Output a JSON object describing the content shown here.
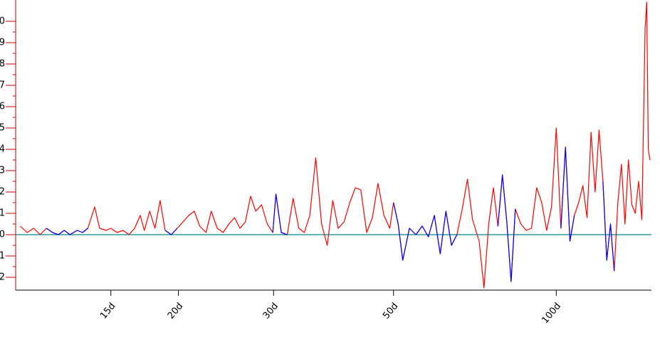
{
  "chart_data": {
    "type": "line",
    "x": [
      10.2,
      10.5,
      10.8,
      11.1,
      11.4,
      11.7,
      12.0,
      12.3,
      12.6,
      13.0,
      13.3,
      13.6,
      14.0,
      14.3,
      14.7,
      15.0,
      15.4,
      15.8,
      16.2,
      16.6,
      17.0,
      17.3,
      17.7,
      18.1,
      18.5,
      18.9,
      19.4,
      19.9,
      20.4,
      20.9,
      21.4,
      21.9,
      22.5,
      23.0,
      23.6,
      24.2,
      24.8,
      25.4,
      26.0,
      26.6,
      27.2,
      27.8,
      28.5,
      29.2,
      29.9,
      30.3,
      31.0,
      31.8,
      32.6,
      33.4,
      34.2,
      35.0,
      35.9,
      36.8,
      37.7,
      38.6,
      39.5,
      40.5,
      41.5,
      42.5,
      43.5,
      44.6,
      45.7,
      46.8,
      48.0,
      49.2,
      50.0,
      51.0,
      52.0,
      53.5,
      55.0,
      56.5,
      58.0,
      59.5,
      61.0,
      62.5,
      64.0,
      65.5,
      67.0,
      68.5,
      70.0,
      72.0,
      73.5,
      75.0,
      76.5,
      78.0,
      79.5,
      81.0,
      82.5,
      84.0,
      86.0,
      88.0,
      90.0,
      92.0,
      94.0,
      96.0,
      98.0,
      100.0,
      102.0,
      104.0,
      106.0,
      108.0,
      110.0,
      112.0,
      114.0,
      116.0,
      118.0,
      120.0,
      122.0,
      124.0,
      126.0,
      128.0,
      130.0,
      132.0,
      134.0,
      136.0,
      138.0,
      140.0,
      142.0,
      144.0,
      146.0,
      147.0,
      148.0,
      149.0
    ],
    "series": [
      {
        "color": "#ff0000",
        "values": [
          0.4,
          0.1,
          0.3,
          0.0,
          0.3,
          0.1,
          0.0,
          0.2,
          0.0,
          0.2,
          0.1,
          0.3,
          1.3,
          0.3,
          0.2,
          0.3,
          0.1,
          0.2,
          0.0,
          0.3,
          0.9,
          0.2,
          1.1,
          0.3,
          1.6,
          0.2,
          0.0,
          0.3,
          0.6,
          0.9,
          1.1,
          0.4,
          0.1,
          1.1,
          0.3,
          0.1,
          0.5,
          0.8,
          0.3,
          0.6,
          1.8,
          1.1,
          1.4,
          0.5,
          0.1,
          1.9,
          0.1,
          0.0,
          1.7,
          0.3,
          0.1,
          0.9,
          3.6,
          0.5,
          -0.5,
          1.6,
          0.3,
          0.6,
          1.5,
          2.2,
          2.1,
          0.1,
          0.8,
          2.4,
          0.9,
          0.3,
          1.5,
          0.5,
          -1.2,
          0.3,
          0.0,
          0.4,
          -0.1,
          0.9,
          -0.9,
          1.1,
          -0.5,
          0.0,
          1.2,
          2.6,
          0.7,
          -0.3,
          -2.5,
          0.5,
          2.2,
          0.4,
          2.8,
          0.6,
          -2.2,
          1.2,
          0.5,
          0.2,
          0.3,
          2.2,
          1.5,
          0.2,
          1.3,
          5.0,
          0.3,
          4.1,
          -0.3,
          0.9,
          1.5,
          2.3,
          0.8,
          4.8,
          2.0,
          4.9,
          2.5,
          -1.2,
          0.5,
          -1.7,
          1.5,
          3.3,
          0.5,
          3.5,
          1.4,
          1.0,
          2.5,
          0.7,
          9.7,
          10.9,
          4.0,
          3.5
        ]
      },
      {
        "color": "#0000ff",
        "values": [
          null,
          null,
          null,
          null,
          0.3,
          0.1,
          0.0,
          0.2,
          0.0,
          0.2,
          0.1,
          0.3,
          null,
          null,
          null,
          null,
          null,
          null,
          null,
          null,
          null,
          null,
          null,
          null,
          null,
          0.2,
          0.0,
          0.3,
          null,
          null,
          null,
          null,
          null,
          null,
          null,
          null,
          null,
          null,
          null,
          null,
          null,
          null,
          null,
          null,
          0.1,
          1.9,
          0.1,
          0.0,
          null,
          null,
          null,
          null,
          null,
          null,
          null,
          null,
          null,
          null,
          null,
          null,
          null,
          null,
          null,
          null,
          null,
          null,
          1.5,
          0.5,
          -1.2,
          0.3,
          0.0,
          0.4,
          -0.1,
          0.9,
          -0.9,
          1.1,
          -0.5,
          0.0,
          null,
          null,
          null,
          null,
          null,
          null,
          null,
          0.4,
          2.8,
          0.6,
          -2.2,
          1.2,
          null,
          null,
          null,
          null,
          null,
          null,
          null,
          null,
          0.3,
          4.1,
          -0.3,
          0.9,
          null,
          null,
          null,
          null,
          null,
          null,
          2.5,
          -1.2,
          0.5,
          -1.7,
          null,
          null,
          null,
          null,
          null,
          null,
          null,
          null,
          null,
          null,
          null,
          null
        ]
      }
    ],
    "xscale": "log",
    "xlim": [
      10,
      150
    ],
    "xticks": [
      {
        "value": 15,
        "label": "15d"
      },
      {
        "value": 20,
        "label": "20d"
      },
      {
        "value": 30,
        "label": "30d"
      },
      {
        "value": 50,
        "label": "50d"
      },
      {
        "value": 100,
        "label": "100d"
      }
    ],
    "ylim": [
      -2.6,
      11
    ],
    "yticks": [
      -2,
      -1,
      0,
      1,
      2,
      3,
      4,
      5,
      6,
      7,
      8,
      9,
      10
    ],
    "reference_line": 0,
    "reference_color": "#008b8b",
    "axis_color": "#cc0000"
  }
}
